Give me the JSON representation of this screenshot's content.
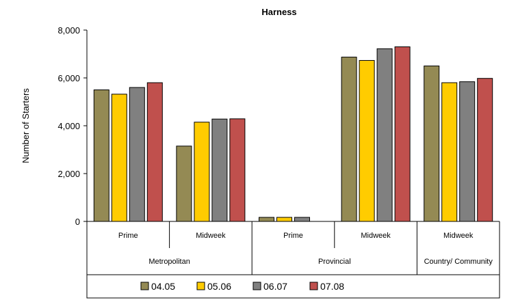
{
  "chart_data": {
    "type": "bar",
    "title": "Harness",
    "ylabel": "Number of Starters",
    "xlabel": "",
    "ylim": [
      0,
      8000
    ],
    "yticks": [
      0,
      2000,
      4000,
      6000,
      8000
    ],
    "ytick_labels": [
      "0",
      "2,000",
      "4,000",
      "6,000",
      "8,000"
    ],
    "categories": [
      "Prime",
      "Midweek",
      "Prime",
      "Midweek",
      "Midweek"
    ],
    "groups": [
      {
        "label": "Metropolitan",
        "span": 2
      },
      {
        "label": "Provincial",
        "span": 2
      },
      {
        "label": "Country/ Community",
        "span": 1
      }
    ],
    "series": [
      {
        "name": "04.05",
        "color": "#948A54",
        "values": [
          5500,
          3150,
          170,
          6870,
          6500
        ]
      },
      {
        "name": "05.06",
        "color": "#FFCC00",
        "values": [
          5320,
          4150,
          170,
          6730,
          5800
        ]
      },
      {
        "name": "06.07",
        "color": "#808080",
        "values": [
          5600,
          4280,
          170,
          7220,
          5840
        ]
      },
      {
        "name": "07.08",
        "color": "#C0504D",
        "values": [
          5800,
          4290,
          null,
          7300,
          5980
        ]
      }
    ],
    "grid": false,
    "legend": "bottom"
  }
}
